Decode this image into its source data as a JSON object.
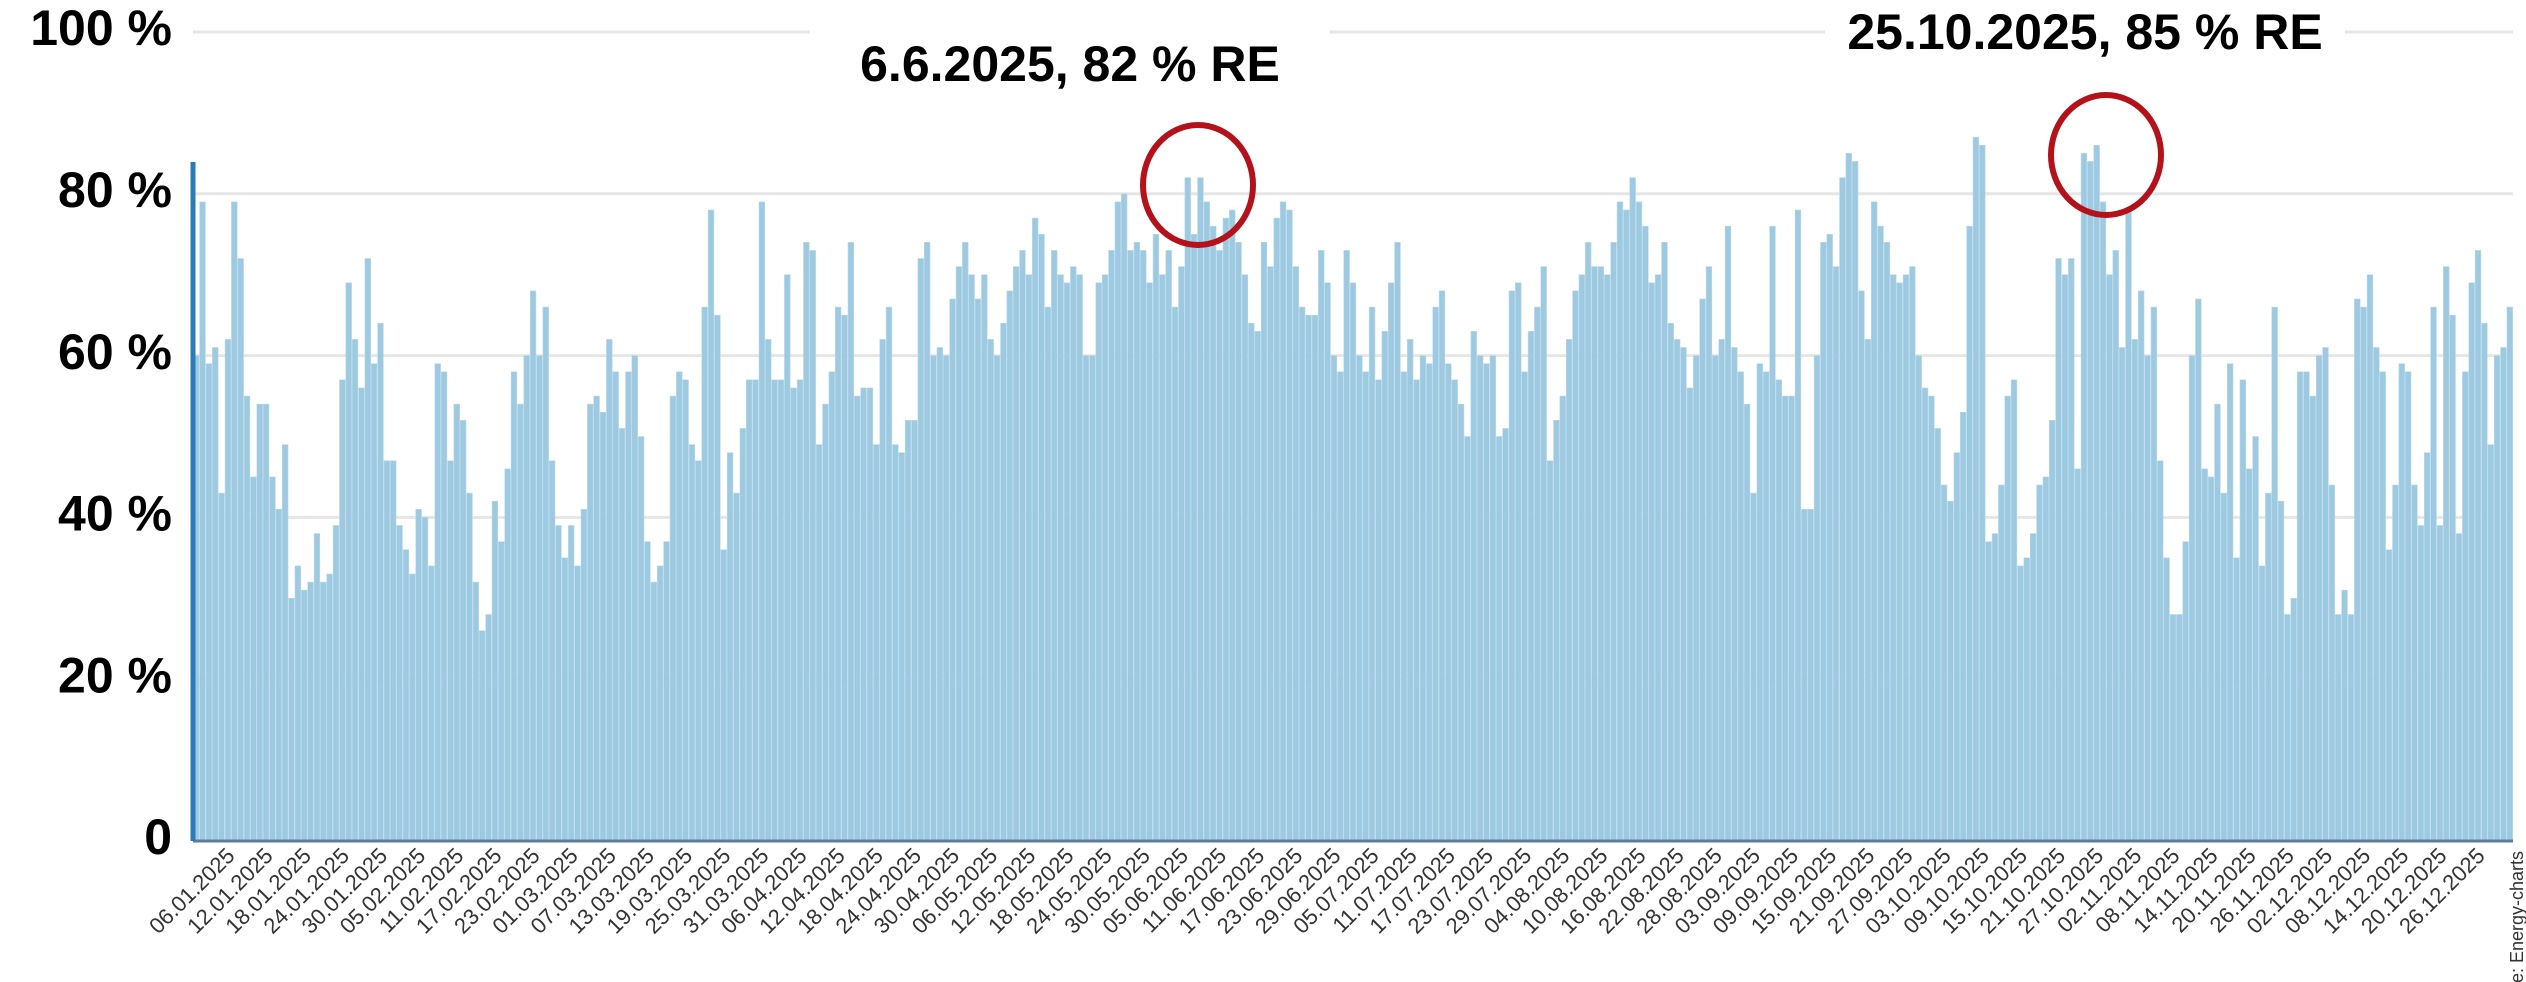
{
  "chart_data": {
    "type": "bar",
    "color": "#9ecae1",
    "grid": true,
    "ylim": [
      0,
      100
    ],
    "yticks": [
      0,
      {
        "value": 20,
        "label": "20 %"
      },
      {
        "value": 40,
        "label": "40 %"
      },
      {
        "value": 60,
        "label": "60 %"
      },
      {
        "value": 80,
        "label": "80 %"
      },
      {
        "value": 100,
        "label": "100 %"
      }
    ],
    "annotations": [
      "6.6.2025, 82 % RE",
      "25.10.2025, 85 % RE"
    ],
    "source": "Source: Energy-charts",
    "categories": [
      null,
      null,
      null,
      null,
      null,
      "06.01.2025",
      null,
      null,
      null,
      null,
      null,
      "12.01.2025",
      null,
      null,
      null,
      null,
      null,
      "18.01.2025",
      null,
      null,
      null,
      null,
      null,
      "24.01.2025",
      null,
      null,
      null,
      null,
      null,
      "30.01.2025",
      null,
      null,
      null,
      null,
      null,
      "05.02.2025",
      null,
      null,
      null,
      null,
      null,
      "11.02.2025",
      null,
      null,
      null,
      null,
      null,
      "17.02.2025",
      null,
      null,
      null,
      null,
      null,
      "23.02.2025",
      null,
      null,
      null,
      null,
      null,
      "01.03.2025",
      null,
      null,
      null,
      null,
      null,
      "07.03.2025",
      null,
      null,
      null,
      null,
      null,
      "13.03.2025",
      null,
      null,
      null,
      null,
      null,
      "19.03.2025",
      null,
      null,
      null,
      null,
      null,
      "25.03.2025",
      null,
      null,
      null,
      null,
      null,
      "31.03.2025",
      null,
      null,
      null,
      null,
      null,
      "06.04.2025",
      null,
      null,
      null,
      null,
      null,
      "12.04.2025",
      null,
      null,
      null,
      null,
      null,
      "18.04.2025",
      null,
      null,
      null,
      null,
      null,
      "24.04.2025",
      null,
      null,
      null,
      null,
      null,
      "30.04.2025",
      null,
      null,
      null,
      null,
      null,
      "06.05.2025",
      null,
      null,
      null,
      null,
      null,
      "12.05.2025",
      null,
      null,
      null,
      null,
      null,
      "18.05.2025",
      null,
      null,
      null,
      null,
      null,
      "24.05.2025",
      null,
      null,
      null,
      null,
      null,
      "30.05.2025",
      null,
      null,
      null,
      null,
      null,
      "05.06.2025",
      null,
      null,
      null,
      null,
      null,
      "11.06.2025",
      null,
      null,
      null,
      null,
      null,
      "17.06.2025",
      null,
      null,
      null,
      null,
      null,
      "23.06.2025",
      null,
      null,
      null,
      null,
      null,
      "29.06.2025",
      null,
      null,
      null,
      null,
      null,
      "05.07.2025",
      null,
      null,
      null,
      null,
      null,
      "11.07.2025",
      null,
      null,
      null,
      null,
      null,
      "17.07.2025",
      null,
      null,
      null,
      null,
      null,
      "23.07.2025",
      null,
      null,
      null,
      null,
      null,
      "29.07.2025",
      null,
      null,
      null,
      null,
      null,
      "04.08.2025",
      null,
      null,
      null,
      null,
      null,
      "10.08.2025",
      null,
      null,
      null,
      null,
      null,
      "16.08.2025",
      null,
      null,
      null,
      null,
      null,
      "22.08.2025",
      null,
      null,
      null,
      null,
      null,
      "28.08.2025",
      null,
      null,
      null,
      null,
      null,
      "03.09.2025",
      null,
      null,
      null,
      null,
      null,
      "09.09.2025",
      null,
      null,
      null,
      null,
      null,
      "15.09.2025",
      null,
      null,
      null,
      null,
      null,
      "21.09.2025",
      null,
      null,
      null,
      null,
      null,
      "27.09.2025",
      null,
      null,
      null,
      null,
      null,
      "03.10.2025",
      null,
      null,
      null,
      null,
      null,
      "09.10.2025",
      null,
      null,
      null,
      null,
      null,
      "15.10.2025",
      null,
      null,
      null,
      null,
      null,
      "21.10.2025",
      null,
      null,
      null,
      null,
      null,
      "27.10.2025",
      null,
      null,
      null,
      null,
      null,
      "02.11.2025",
      null,
      null,
      null,
      null,
      null,
      "08.11.2025",
      null,
      null,
      null,
      null,
      null,
      "14.11.2025",
      null,
      null,
      null,
      null,
      null,
      "20.11.2025",
      null,
      null,
      null,
      null,
      null,
      "26.11.2025",
      null,
      null,
      null,
      null,
      null,
      "02.12.2025",
      null,
      null,
      null,
      null,
      null,
      "08.12.2025",
      null,
      null,
      null,
      null,
      null,
      "14.12.2025",
      null,
      null,
      null,
      null,
      null,
      "20.12.2025",
      null,
      null,
      null,
      null,
      null,
      "26.12.2025",
      null,
      null,
      null,
      null,
      null
    ],
    "values": [
      60,
      79,
      59,
      61,
      43,
      62,
      79,
      72,
      55,
      45,
      54,
      54,
      45,
      41,
      49,
      30,
      34,
      31,
      32,
      38,
      32,
      33,
      39,
      57,
      69,
      62,
      56,
      72,
      59,
      64,
      47,
      47,
      39,
      36,
      33,
      41,
      40,
      34,
      59,
      58,
      47,
      54,
      52,
      43,
      32,
      26,
      28,
      42,
      37,
      46,
      58,
      54,
      60,
      68,
      60,
      66,
      47,
      39,
      35,
      39,
      34,
      41,
      54,
      55,
      53,
      62,
      58,
      51,
      58,
      60,
      50,
      37,
      32,
      34,
      37,
      55,
      58,
      57,
      49,
      47,
      66,
      78,
      65,
      36,
      48,
      43,
      51,
      57,
      57,
      79,
      62,
      57,
      57,
      70,
      56,
      57,
      74,
      73,
      49,
      54,
      58,
      66,
      65,
      74,
      55,
      56,
      56,
      49,
      62,
      66,
      49,
      48,
      52,
      52,
      72,
      74,
      60,
      61,
      60,
      67,
      71,
      74,
      70,
      67,
      70,
      62,
      60,
      64,
      68,
      71,
      73,
      70,
      77,
      75,
      66,
      73,
      70,
      69,
      71,
      70,
      60,
      60,
      69,
      70,
      73,
      79,
      80,
      73,
      74,
      73,
      69,
      75,
      70,
      73,
      66,
      71,
      82,
      75,
      82,
      79,
      76,
      73,
      77,
      78,
      74,
      70,
      64,
      63,
      74,
      71,
      77,
      79,
      78,
      71,
      66,
      65,
      65,
      73,
      69,
      60,
      58,
      73,
      69,
      60,
      58,
      66,
      57,
      63,
      69,
      74,
      58,
      62,
      57,
      60,
      59,
      66,
      68,
      59,
      57,
      54,
      50,
      63,
      60,
      59,
      60,
      50,
      51,
      68,
      69,
      58,
      63,
      66,
      71,
      47,
      52,
      55,
      62,
      68,
      70,
      74,
      71,
      71,
      70,
      74,
      79,
      78,
      82,
      79,
      76,
      69,
      70,
      74,
      64,
      62,
      61,
      56,
      60,
      67,
      71,
      60,
      62,
      76,
      61,
      58,
      54,
      43,
      59,
      58,
      76,
      57,
      55,
      55,
      78,
      41,
      41,
      60,
      74,
      75,
      71,
      82,
      85,
      84,
      68,
      62,
      79,
      76,
      74,
      70,
      69,
      70,
      71,
      60,
      56,
      55,
      51,
      44,
      42,
      48,
      53,
      76,
      87,
      86,
      37,
      38,
      44,
      55,
      57,
      34,
      35,
      38,
      44,
      45,
      52,
      72,
      70,
      72,
      46,
      85,
      84,
      86,
      79,
      70,
      73,
      61,
      78,
      62,
      68,
      60,
      66,
      47,
      35,
      28,
      28,
      37,
      60,
      67,
      46,
      45,
      54,
      43,
      59,
      35,
      57,
      46,
      50,
      34,
      43,
      66,
      42,
      28,
      30,
      58,
      58,
      55,
      60,
      61,
      44,
      28,
      31,
      28,
      67,
      66,
      70,
      61,
      58,
      36,
      44,
      59,
      58,
      44,
      39,
      48,
      66,
      39,
      71,
      65,
      38,
      58,
      69,
      73,
      64,
      49,
      60,
      61,
      66
    ]
  }
}
